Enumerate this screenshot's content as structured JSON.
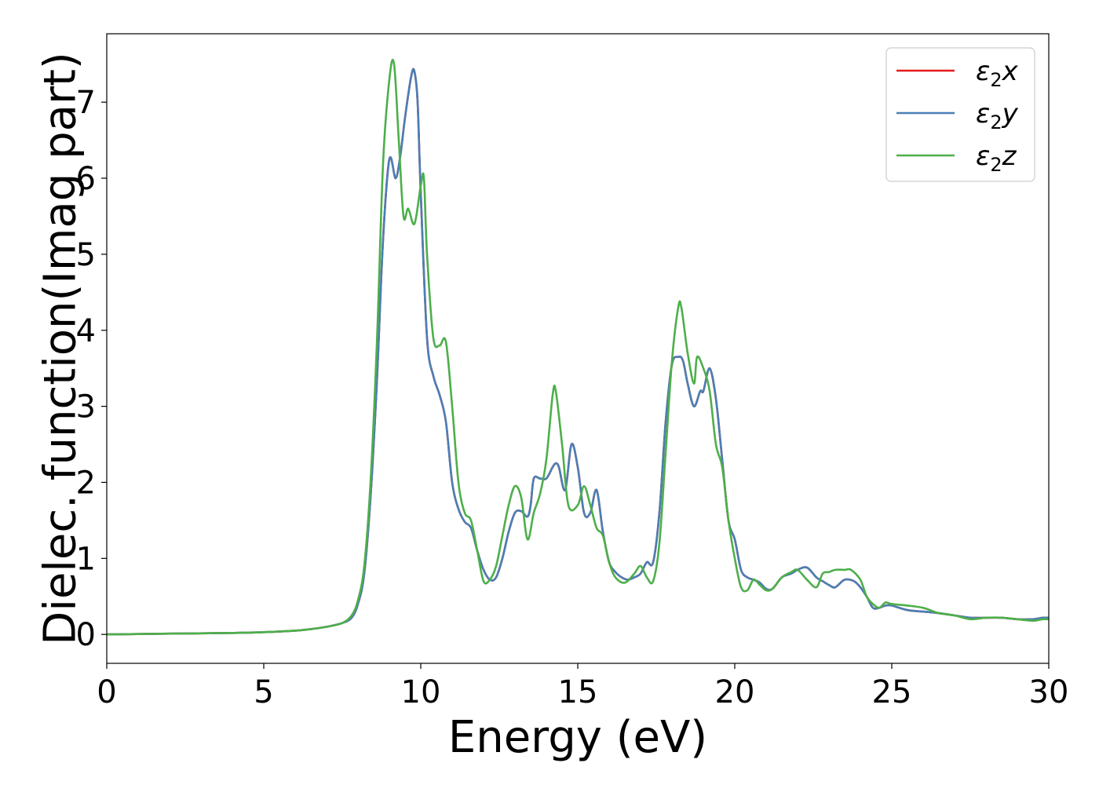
{
  "chart_data": {
    "type": "line",
    "xlabel": "Energy (eV)",
    "ylabel": "Dielec. function(Imag part)",
    "xlim": [
      0,
      30
    ],
    "ylim": [
      -0.38,
      7.9
    ],
    "xticks": [
      0,
      5,
      10,
      15,
      20,
      25,
      30
    ],
    "yticks": [
      0,
      1,
      2,
      3,
      4,
      5,
      6,
      7
    ],
    "grid": false,
    "legend_position": "top-right",
    "series": [
      {
        "name": "ε2x",
        "legend": {
          "base": "ε",
          "sub": "2",
          "var": "x"
        },
        "color": "#e41a1c",
        "x": [
          0,
          2,
          4,
          5,
          6,
          6.5,
          7,
          7.5,
          7.8,
          8.0,
          8.2,
          8.4,
          8.6,
          8.8,
          9.0,
          9.2,
          9.35,
          9.5,
          9.7,
          9.8,
          9.9,
          10.0,
          10.2,
          10.4,
          10.6,
          10.8,
          11.0,
          11.2,
          11.4,
          11.6,
          11.8,
          12.0,
          12.2,
          12.4,
          12.6,
          12.8,
          13.0,
          13.2,
          13.4,
          13.5,
          13.6,
          13.8,
          14.0,
          14.2,
          14.3,
          14.4,
          14.6,
          14.8,
          15.0,
          15.2,
          15.4,
          15.6,
          15.8,
          16.0,
          16.2,
          16.4,
          16.6,
          16.8,
          17.0,
          17.2,
          17.4,
          17.6,
          17.8,
          18.0,
          18.2,
          18.35,
          18.5,
          18.7,
          18.9,
          19.0,
          19.2,
          19.4,
          19.6,
          19.8,
          20.0,
          20.2,
          20.4,
          20.6,
          20.8,
          21.0,
          21.2,
          21.5,
          21.8,
          22.0,
          22.3,
          22.6,
          22.8,
          23.0,
          23.2,
          23.5,
          23.8,
          24.0,
          24.2,
          24.4,
          24.6,
          24.8,
          25.0,
          25.5,
          26.0,
          26.5,
          27.0,
          27.5,
          28.0,
          28.5,
          29.0,
          29.5,
          29.8,
          30.0
        ],
        "values": [
          0.0,
          0.01,
          0.02,
          0.03,
          0.05,
          0.07,
          0.1,
          0.15,
          0.22,
          0.4,
          0.8,
          1.8,
          3.3,
          5.2,
          6.25,
          6.0,
          6.3,
          6.8,
          7.35,
          7.4,
          7.0,
          5.8,
          3.9,
          3.4,
          3.15,
          2.8,
          2.0,
          1.65,
          1.48,
          1.4,
          1.1,
          0.85,
          0.72,
          0.75,
          1.0,
          1.35,
          1.6,
          1.62,
          1.55,
          1.7,
          2.05,
          2.05,
          2.05,
          2.2,
          2.25,
          2.2,
          1.9,
          2.5,
          2.2,
          1.6,
          1.6,
          1.9,
          1.35,
          0.95,
          0.82,
          0.75,
          0.72,
          0.75,
          0.8,
          0.95,
          0.95,
          1.6,
          2.8,
          3.55,
          3.65,
          3.6,
          3.3,
          3.0,
          3.2,
          3.2,
          3.5,
          3.1,
          2.3,
          1.5,
          1.25,
          0.85,
          0.75,
          0.72,
          0.68,
          0.6,
          0.6,
          0.75,
          0.8,
          0.85,
          0.88,
          0.75,
          0.7,
          0.65,
          0.62,
          0.72,
          0.7,
          0.62,
          0.5,
          0.35,
          0.35,
          0.38,
          0.38,
          0.32,
          0.3,
          0.28,
          0.25,
          0.22,
          0.22,
          0.22,
          0.2,
          0.2,
          0.22,
          0.22
        ]
      },
      {
        "name": "ε2y",
        "legend": {
          "base": "ε",
          "sub": "2",
          "var": "y"
        },
        "color": "#4a7fb5",
        "x": [
          0,
          2,
          4,
          5,
          6,
          6.5,
          7,
          7.5,
          7.8,
          8.0,
          8.2,
          8.4,
          8.6,
          8.8,
          9.0,
          9.2,
          9.35,
          9.5,
          9.7,
          9.8,
          9.9,
          10.0,
          10.2,
          10.4,
          10.6,
          10.8,
          11.0,
          11.2,
          11.4,
          11.6,
          11.8,
          12.0,
          12.2,
          12.4,
          12.6,
          12.8,
          13.0,
          13.2,
          13.4,
          13.5,
          13.6,
          13.8,
          14.0,
          14.2,
          14.3,
          14.4,
          14.6,
          14.8,
          15.0,
          15.2,
          15.4,
          15.6,
          15.8,
          16.0,
          16.2,
          16.4,
          16.6,
          16.8,
          17.0,
          17.2,
          17.4,
          17.6,
          17.8,
          18.0,
          18.2,
          18.35,
          18.5,
          18.7,
          18.9,
          19.0,
          19.2,
          19.4,
          19.6,
          19.8,
          20.0,
          20.2,
          20.4,
          20.6,
          20.8,
          21.0,
          21.2,
          21.5,
          21.8,
          22.0,
          22.3,
          22.6,
          22.8,
          23.0,
          23.2,
          23.5,
          23.8,
          24.0,
          24.2,
          24.4,
          24.6,
          24.8,
          25.0,
          25.5,
          26.0,
          26.5,
          27.0,
          27.5,
          28.0,
          28.5,
          29.0,
          29.5,
          29.8,
          30.0
        ],
        "values": [
          0.0,
          0.01,
          0.02,
          0.03,
          0.05,
          0.07,
          0.1,
          0.15,
          0.22,
          0.4,
          0.8,
          1.8,
          3.3,
          5.2,
          6.25,
          6.0,
          6.3,
          6.8,
          7.35,
          7.4,
          7.0,
          5.8,
          3.9,
          3.4,
          3.15,
          2.8,
          2.0,
          1.65,
          1.48,
          1.4,
          1.1,
          0.85,
          0.72,
          0.75,
          1.0,
          1.35,
          1.6,
          1.62,
          1.55,
          1.7,
          2.05,
          2.05,
          2.05,
          2.2,
          2.25,
          2.2,
          1.9,
          2.5,
          2.2,
          1.6,
          1.6,
          1.9,
          1.35,
          0.95,
          0.82,
          0.75,
          0.72,
          0.75,
          0.8,
          0.95,
          0.95,
          1.6,
          2.8,
          3.55,
          3.65,
          3.6,
          3.3,
          3.0,
          3.2,
          3.2,
          3.5,
          3.1,
          2.3,
          1.5,
          1.25,
          0.85,
          0.75,
          0.72,
          0.68,
          0.6,
          0.6,
          0.75,
          0.8,
          0.85,
          0.88,
          0.75,
          0.7,
          0.65,
          0.62,
          0.72,
          0.7,
          0.62,
          0.5,
          0.35,
          0.35,
          0.38,
          0.38,
          0.32,
          0.3,
          0.28,
          0.25,
          0.22,
          0.22,
          0.22,
          0.2,
          0.2,
          0.22,
          0.22
        ]
      },
      {
        "name": "ε2z",
        "legend": {
          "base": "ε",
          "sub": "2",
          "var": "z"
        },
        "color": "#4daf4a",
        "x": [
          0,
          2,
          4,
          5,
          6,
          6.5,
          7,
          7.5,
          7.8,
          8.0,
          8.2,
          8.4,
          8.6,
          8.8,
          9.0,
          9.15,
          9.3,
          9.45,
          9.6,
          9.8,
          10.0,
          10.1,
          10.2,
          10.4,
          10.6,
          10.8,
          11.0,
          11.2,
          11.4,
          11.6,
          11.8,
          12.0,
          12.2,
          12.4,
          12.6,
          12.8,
          13.0,
          13.2,
          13.4,
          13.6,
          13.8,
          14.0,
          14.2,
          14.3,
          14.5,
          14.7,
          15.0,
          15.2,
          15.4,
          15.6,
          15.8,
          16.0,
          16.2,
          16.5,
          16.8,
          17.0,
          17.2,
          17.4,
          17.6,
          17.8,
          18.0,
          18.2,
          18.3,
          18.5,
          18.7,
          18.8,
          19.0,
          19.2,
          19.4,
          19.6,
          19.8,
          20.0,
          20.2,
          20.4,
          20.6,
          20.8,
          21.0,
          21.2,
          21.5,
          21.8,
          22.0,
          22.3,
          22.6,
          22.8,
          23.0,
          23.2,
          23.5,
          23.7,
          24.0,
          24.2,
          24.4,
          24.6,
          24.8,
          25.0,
          25.5,
          26.0,
          26.5,
          27.0,
          27.5,
          28.0,
          28.5,
          29.0,
          29.5,
          29.8,
          30.0
        ],
        "values": [
          0.0,
          0.01,
          0.02,
          0.03,
          0.05,
          0.07,
          0.1,
          0.15,
          0.25,
          0.45,
          0.9,
          2.0,
          3.8,
          6.2,
          7.3,
          7.5,
          6.5,
          5.5,
          5.6,
          5.4,
          5.9,
          6.0,
          5.0,
          3.9,
          3.8,
          3.85,
          3.0,
          2.0,
          1.6,
          1.5,
          1.1,
          0.7,
          0.72,
          0.9,
          1.3,
          1.7,
          1.95,
          1.8,
          1.25,
          1.6,
          1.85,
          2.3,
          3.15,
          3.2,
          2.5,
          1.7,
          1.7,
          1.95,
          1.7,
          1.4,
          1.3,
          0.95,
          0.75,
          0.68,
          0.8,
          0.9,
          0.75,
          0.7,
          1.2,
          2.4,
          3.6,
          4.3,
          4.3,
          3.7,
          3.3,
          3.65,
          3.5,
          3.2,
          2.5,
          2.2,
          1.5,
          1.0,
          0.62,
          0.58,
          0.72,
          0.65,
          0.58,
          0.6,
          0.75,
          0.82,
          0.85,
          0.72,
          0.62,
          0.8,
          0.82,
          0.85,
          0.85,
          0.85,
          0.72,
          0.5,
          0.4,
          0.35,
          0.42,
          0.4,
          0.38,
          0.35,
          0.28,
          0.25,
          0.2,
          0.22,
          0.22,
          0.2,
          0.18,
          0.2,
          0.2
        ]
      }
    ]
  }
}
